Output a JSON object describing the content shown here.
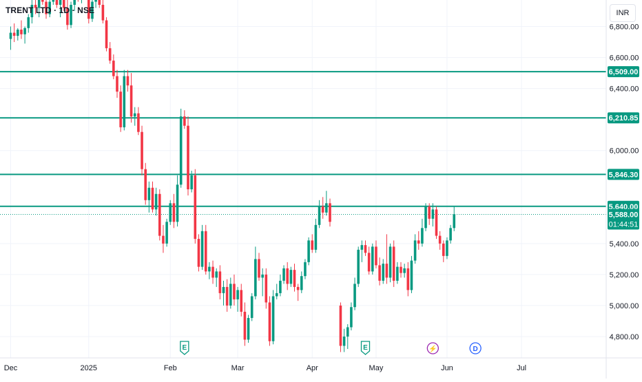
{
  "header": {
    "symbol_title": "TRENT LTD · 1D · NSE",
    "currency": "INR"
  },
  "chart_data": {
    "type": "candlestick",
    "ylim": [
      4680,
      7060
    ],
    "y_ticks": [
      4800,
      5000,
      5200,
      5400,
      6000,
      6400,
      6600,
      6800
    ],
    "y_tick_labels": [
      "4,800.00",
      "5,000.00",
      "5,200.00",
      "5,400.00",
      "6,000.00",
      "6,400.00",
      "6,600.00",
      "6,800.00"
    ],
    "x_labels": [
      {
        "day": 0,
        "text": "Dec"
      },
      {
        "day": 22,
        "text": "2025"
      },
      {
        "day": 45,
        "text": "Feb"
      },
      {
        "day": 64,
        "text": "Mar"
      },
      {
        "day": 85,
        "text": "Apr"
      },
      {
        "day": 103,
        "text": "May"
      },
      {
        "day": 123,
        "text": "Jun"
      },
      {
        "day": 144,
        "text": "Jul"
      }
    ],
    "horizontal_lines": [
      {
        "price": 6509.0,
        "label": "6,509.00",
        "color": "#089981"
      },
      {
        "price": 6210.85,
        "label": "6,210.85",
        "color": "#089981"
      },
      {
        "price": 5846.3,
        "label": "5,846.30",
        "color": "#089981"
      },
      {
        "price": 5640.0,
        "label": "5,640.00",
        "color": "#089981"
      }
    ],
    "last_price": {
      "value": 5588.0,
      "label": "5,588.00",
      "countdown": "01:44:51",
      "color": "#089981"
    },
    "events": [
      {
        "day": 49,
        "kind": "earnings",
        "letter": "E",
        "color": "#089981"
      },
      {
        "day": 100,
        "kind": "earnings",
        "letter": "E",
        "color": "#089981"
      },
      {
        "day": 119,
        "kind": "flash",
        "letter": "⚡",
        "color": "#9c27b0"
      },
      {
        "day": 131,
        "kind": "dividend",
        "letter": "D",
        "color": "#2962ff"
      }
    ],
    "up_color": "#089981",
    "down_color": "#f23645",
    "candles": [
      [
        0,
        6720,
        6800,
        6650,
        6760
      ],
      [
        1,
        6760,
        6820,
        6700,
        6740
      ],
      [
        2,
        6740,
        6790,
        6710,
        6780
      ],
      [
        3,
        6780,
        6840,
        6720,
        6750
      ],
      [
        4,
        6750,
        6800,
        6690,
        6790
      ],
      [
        5,
        6790,
        6880,
        6760,
        6860
      ],
      [
        6,
        6860,
        6980,
        6820,
        6940
      ],
      [
        7,
        6940,
        7000,
        6880,
        6920
      ],
      [
        8,
        6920,
        7000,
        6860,
        6980
      ],
      [
        9,
        6980,
        7040,
        6940,
        6960
      ],
      [
        10,
        6960,
        7000,
        6850,
        6880
      ],
      [
        11,
        6880,
        6980,
        6860,
        6960
      ],
      [
        12,
        6960,
        7050,
        6940,
        7010
      ],
      [
        13,
        7010,
        7050,
        6920,
        6940
      ],
      [
        14,
        6940,
        7000,
        6860,
        6990
      ],
      [
        15,
        6990,
        7040,
        6900,
        6920
      ],
      [
        16,
        6920,
        6980,
        6780,
        6810
      ],
      [
        17,
        6810,
        6960,
        6790,
        6940
      ],
      [
        18,
        6940,
        7040,
        6900,
        7020
      ],
      [
        19,
        7020,
        7060,
        6960,
        6990
      ],
      [
        20,
        6990,
        7060,
        6950,
        7040
      ],
      [
        21,
        7040,
        7060,
        6980,
        7000
      ],
      [
        22,
        7000,
        7040,
        6820,
        6850
      ],
      [
        23,
        6850,
        6990,
        6830,
        6960
      ],
      [
        24,
        6960,
        7060,
        6920,
        7040
      ],
      [
        25,
        7040,
        7060,
        6920,
        6940
      ],
      [
        26,
        6940,
        6980,
        6820,
        6840
      ],
      [
        27,
        6840,
        6860,
        6640,
        6660
      ],
      [
        28,
        6660,
        6700,
        6560,
        6580
      ],
      [
        29,
        6580,
        6620,
        6460,
        6480
      ],
      [
        30,
        6480,
        6520,
        6340,
        6380
      ],
      [
        31,
        6380,
        6420,
        6120,
        6150
      ],
      [
        32,
        6150,
        6520,
        6130,
        6480
      ],
      [
        33,
        6480,
        6520,
        6380,
        6420
      ],
      [
        34,
        6420,
        6500,
        6180,
        6220
      ],
      [
        35,
        6220,
        6280,
        6160,
        6240
      ],
      [
        36,
        6240,
        6280,
        6100,
        6120
      ],
      [
        37,
        6120,
        6160,
        5840,
        5880
      ],
      [
        38,
        5880,
        5920,
        5650,
        5680
      ],
      [
        39,
        5680,
        5800,
        5600,
        5760
      ],
      [
        40,
        5760,
        5800,
        5600,
        5620
      ],
      [
        41,
        5620,
        5760,
        5580,
        5720
      ],
      [
        42,
        5720,
        5750,
        5420,
        5450
      ],
      [
        43,
        5450,
        5520,
        5340,
        5400
      ],
      [
        44,
        5400,
        5560,
        5380,
        5540
      ],
      [
        45,
        5540,
        5680,
        5520,
        5660
      ],
      [
        46,
        5660,
        5720,
        5500,
        5540
      ],
      [
        47,
        5540,
        5840,
        5510,
        5780
      ],
      [
        48,
        5780,
        6270,
        5760,
        6220
      ],
      [
        49,
        6220,
        6260,
        6140,
        6160
      ],
      [
        50,
        6160,
        6220,
        5710,
        5750
      ],
      [
        51,
        5750,
        5870,
        5730,
        5840
      ],
      [
        52,
        5840,
        5880,
        5400,
        5430
      ],
      [
        53,
        5430,
        5460,
        5220,
        5250
      ],
      [
        54,
        5250,
        5520,
        5230,
        5480
      ],
      [
        55,
        5480,
        5520,
        5200,
        5220
      ],
      [
        56,
        5220,
        5280,
        5170,
        5250
      ],
      [
        57,
        5250,
        5290,
        5140,
        5180
      ],
      [
        58,
        5180,
        5240,
        5120,
        5220
      ],
      [
        59,
        5220,
        5260,
        5040,
        5080
      ],
      [
        60,
        5080,
        5160,
        5000,
        5120
      ],
      [
        61,
        5120,
        5170,
        4960,
        5000
      ],
      [
        62,
        5000,
        5180,
        4980,
        5140
      ],
      [
        63,
        5140,
        5200,
        5000,
        5040
      ],
      [
        64,
        5040,
        5120,
        4960,
        5100
      ],
      [
        65,
        5100,
        5140,
        4930,
        4960
      ],
      [
        66,
        4960,
        5020,
        4740,
        4780
      ],
      [
        67,
        4780,
        4940,
        4760,
        4920
      ],
      [
        68,
        4920,
        5080,
        4900,
        5060
      ],
      [
        69,
        5060,
        5380,
        5040,
        5300
      ],
      [
        70,
        5300,
        5340,
        5160,
        5180
      ],
      [
        71,
        5180,
        5240,
        5060,
        5200
      ],
      [
        72,
        5200,
        5240,
        4980,
        5020
      ],
      [
        73,
        5020,
        5060,
        4740,
        4770
      ],
      [
        74,
        4770,
        5100,
        4750,
        5060
      ],
      [
        75,
        5060,
        5140,
        5040,
        5080
      ],
      [
        76,
        5080,
        5200,
        5060,
        5160
      ],
      [
        77,
        5160,
        5260,
        5140,
        5240
      ],
      [
        78,
        5240,
        5280,
        5100,
        5140
      ],
      [
        79,
        5140,
        5250,
        5120,
        5230
      ],
      [
        80,
        5230,
        5270,
        5090,
        5120
      ],
      [
        81,
        5120,
        5140,
        5030,
        5100
      ],
      [
        82,
        5100,
        5220,
        5080,
        5190
      ],
      [
        83,
        5190,
        5300,
        5170,
        5280
      ],
      [
        84,
        5280,
        5440,
        5260,
        5420
      ],
      [
        85,
        5420,
        5460,
        5340,
        5360
      ],
      [
        86,
        5360,
        5560,
        5340,
        5520
      ],
      [
        87,
        5520,
        5680,
        5500,
        5640
      ],
      [
        88,
        5640,
        5700,
        5560,
        5600
      ],
      [
        89,
        5600,
        5740,
        5580,
        5660
      ],
      [
        90,
        5660,
        5690,
        5510,
        5540
      ],
      [
        93,
        5000,
        5020,
        4700,
        4740
      ],
      [
        94,
        4740,
        4850,
        4700,
        4800
      ],
      [
        95,
        4800,
        4880,
        4720,
        4860
      ],
      [
        96,
        4860,
        5020,
        4840,
        4990
      ],
      [
        97,
        4990,
        5180,
        4970,
        5140
      ],
      [
        98,
        5140,
        5380,
        5120,
        5360
      ],
      [
        99,
        5360,
        5420,
        5280,
        5390
      ],
      [
        100,
        5390,
        5420,
        5320,
        5340
      ],
      [
        101,
        5340,
        5380,
        5200,
        5220
      ],
      [
        102,
        5220,
        5400,
        5200,
        5380
      ],
      [
        103,
        5380,
        5420,
        5240,
        5260
      ],
      [
        104,
        5260,
        5310,
        5130,
        5160
      ],
      [
        105,
        5160,
        5300,
        5140,
        5270
      ],
      [
        106,
        5270,
        5460,
        5140,
        5180
      ],
      [
        107,
        5180,
        5400,
        5150,
        5380
      ],
      [
        108,
        5380,
        5420,
        5120,
        5160
      ],
      [
        109,
        5160,
        5280,
        5140,
        5250
      ],
      [
        110,
        5250,
        5280,
        5180,
        5210
      ],
      [
        111,
        5210,
        5270,
        5180,
        5240
      ],
      [
        112,
        5240,
        5280,
        5060,
        5100
      ],
      [
        113,
        5100,
        5320,
        5080,
        5290
      ],
      [
        114,
        5290,
        5460,
        5270,
        5420
      ],
      [
        115,
        5420,
        5480,
        5360,
        5400
      ],
      [
        116,
        5400,
        5560,
        5380,
        5500
      ],
      [
        117,
        5500,
        5660,
        5480,
        5640
      ],
      [
        118,
        5640,
        5660,
        5520,
        5560
      ],
      [
        119,
        5560,
        5660,
        5510,
        5620
      ],
      [
        120,
        5620,
        5640,
        5430,
        5450
      ],
      [
        121,
        5450,
        5480,
        5360,
        5400
      ],
      [
        122,
        5400,
        5420,
        5280,
        5320
      ],
      [
        123,
        5320,
        5440,
        5300,
        5420
      ],
      [
        124,
        5420,
        5520,
        5400,
        5500
      ],
      [
        125,
        5500,
        5640,
        5480,
        5588
      ]
    ]
  }
}
